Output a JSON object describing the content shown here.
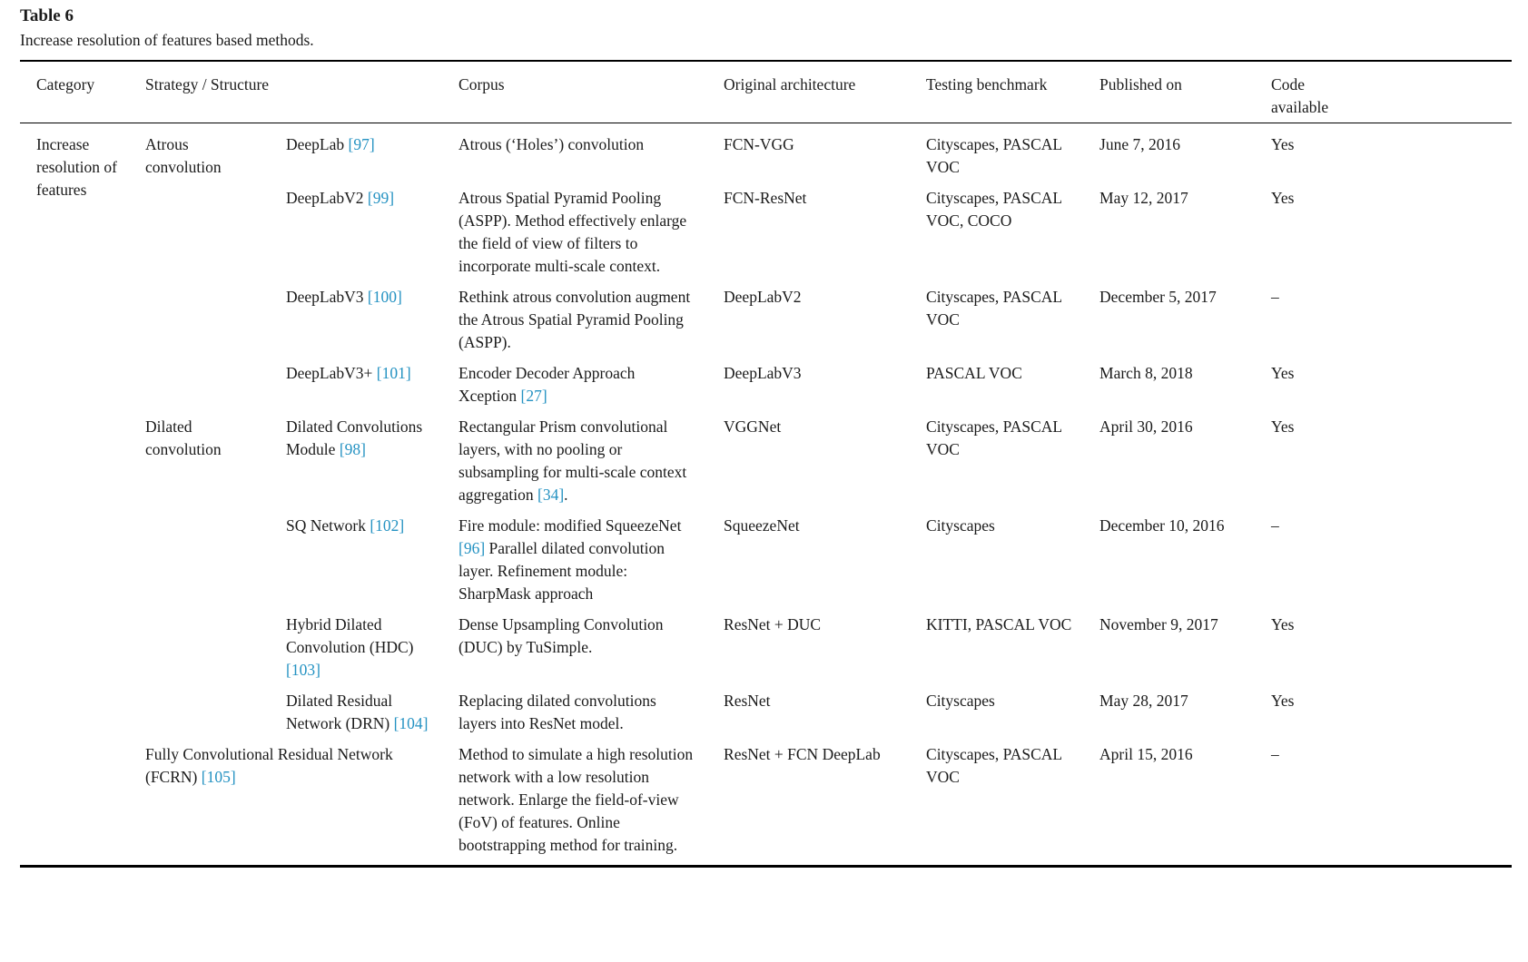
{
  "paper_table": {
    "title": "Table 6",
    "caption": "Increase resolution of features based methods.",
    "citation_color": "#2492c2",
    "headers": {
      "category": "Category",
      "strategy_structure": "Strategy / Structure",
      "corpus": "Corpus",
      "original_architecture": "Original architecture",
      "testing_benchmark": "Testing benchmark",
      "published_on": "Published on",
      "code_available": "Code available"
    },
    "category": "Increase resolution of features",
    "rows": [
      {
        "strategy": "Atrous convolution",
        "structure": [
          {
            "text": "DeepLab "
          },
          {
            "ref": "[97]"
          }
        ],
        "corpus": [
          {
            "text": "Atrous (‘Holes’) convolution"
          }
        ],
        "architecture": "FCN-VGG",
        "benchmark": "Cityscapes, PASCAL VOC",
        "published": "June 7, 2016",
        "code": "Yes"
      },
      {
        "structure": [
          {
            "text": "DeepLabV2 "
          },
          {
            "ref": "[99]"
          }
        ],
        "corpus": [
          {
            "text": "Atrous Spatial Pyramid Pooling (ASPP). Method effectively enlarge the field of view of filters to incorporate multi-scale context."
          }
        ],
        "architecture": "FCN-ResNet",
        "benchmark": "Cityscapes, PASCAL VOC, COCO",
        "published": "May 12, 2017",
        "code": "Yes"
      },
      {
        "structure": [
          {
            "text": "DeepLabV3 "
          },
          {
            "ref": "[100]"
          }
        ],
        "corpus": [
          {
            "text": "Rethink atrous convolution augment the Atrous Spatial Pyramid Pooling (ASPP)."
          }
        ],
        "architecture": "DeepLabV2",
        "benchmark": "Cityscapes, PASCAL VOC",
        "published": "December 5, 2017",
        "code": "–"
      },
      {
        "structure": [
          {
            "text": "DeepLabV3+ "
          },
          {
            "ref": "[101]"
          }
        ],
        "corpus": [
          {
            "text": "Encoder Decoder Approach Xception "
          },
          {
            "ref": "[27]"
          }
        ],
        "architecture": "DeepLabV3",
        "benchmark": "PASCAL VOC",
        "published": "March 8, 2018",
        "code": "Yes"
      },
      {
        "strategy": "Dilated convolution",
        "structure": [
          {
            "text": "Dilated Convolutions Module "
          },
          {
            "ref": "[98]"
          }
        ],
        "corpus": [
          {
            "text": "Rectangular Prism convolutional layers, with no pooling or subsampling for multi-scale context aggregation "
          },
          {
            "ref": "[34]"
          },
          {
            "text": "."
          }
        ],
        "architecture": "VGGNet",
        "benchmark": "Cityscapes, PASCAL VOC",
        "published": "April 30, 2016",
        "code": "Yes"
      },
      {
        "structure": [
          {
            "text": "SQ Network "
          },
          {
            "ref": "[102]"
          }
        ],
        "corpus": [
          {
            "text": "Fire module: modified SqueezeNet "
          },
          {
            "ref": "[96]"
          },
          {
            "text": " Parallel dilated convolution layer. Refinement module: SharpMask approach"
          }
        ],
        "architecture": "SqueezeNet",
        "benchmark": "Cityscapes",
        "published": "December 10, 2016",
        "code": "–"
      },
      {
        "structure": [
          {
            "text": "Hybrid Dilated Convolution (HDC) "
          },
          {
            "ref": "[103]"
          }
        ],
        "corpus": [
          {
            "text": "Dense Upsampling Convolution (DUC) by TuSimple."
          }
        ],
        "architecture": "ResNet + DUC",
        "benchmark": "KITTI, PASCAL VOC",
        "published": "November 9, 2017",
        "code": "Yes"
      },
      {
        "structure": [
          {
            "text": "Dilated Residual Network (DRN) "
          },
          {
            "ref": "[104]"
          }
        ],
        "corpus": [
          {
            "text": "Replacing dilated convolutions layers into ResNet model."
          }
        ],
        "architecture": "ResNet",
        "benchmark": "Cityscapes",
        "published": "May 28, 2017",
        "code": "Yes"
      },
      {
        "name_span": [
          {
            "text": "Fully Convolutional Residual Network (FCRN) "
          },
          {
            "ref": "[105]"
          }
        ],
        "corpus": [
          {
            "text": "Method to simulate a high resolution network with a low resolution network. Enlarge the field-of-view (FoV) of features. Online bootstrapping method for training."
          }
        ],
        "architecture": "ResNet + FCN DeepLab",
        "benchmark": "Cityscapes, PASCAL VOC",
        "published": "April 15, 2016",
        "code": "–"
      }
    ]
  }
}
